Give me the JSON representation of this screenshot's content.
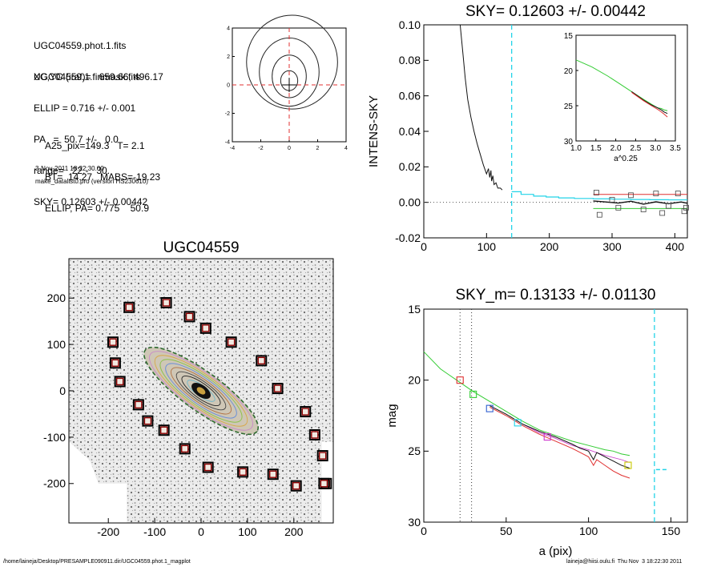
{
  "info": {
    "header_lines": [
      "UGC04559.phot.1.fits",
      "UGC04559.1.finmask.fits"
    ],
    "params_lines": [
      "XC,YC (iraf)=   659.66, 496.17",
      "ELLIP = 0.716 +/- 0.001",
      "PA   =  50.7 +/-   0.0",
      "range=   22.-   30.",
      "SKY= 0.12603 +/- 0.00442"
    ],
    "results_lines": [
      "A25_pix=149.3   T= 2.1",
      "BT=  14.27   MABS=-19.23",
      "ELLIP, PA= 0.775    50.9"
    ],
    "date": "3-Nov-2011 18:22:30.00",
    "program": "make_datalist0.pro (version HS230610)"
  },
  "footer": {
    "left": "/home/laineja/Desktop/PRESAMPLE090911.dir/UGC04559.phot.1_magplot",
    "right": "laineja@hiisi.oulu.fi  Thu Nov  3 18:22:30 2011"
  },
  "colors": {
    "cyan": "#22d3e8",
    "red": "#e03030",
    "green": "#33cc33",
    "frame_box": "#8b0000"
  },
  "chart_data": [
    {
      "id": "contour",
      "type": "contour",
      "xlim": [
        -4,
        4
      ],
      "ylim": [
        -4,
        4
      ],
      "xticks": [
        "-4",
        "-2",
        "0",
        "2",
        "4"
      ],
      "yticks": [
        "-4",
        "-2",
        "0",
        "2",
        "4"
      ],
      "contours": [
        {
          "center": [
            0.0,
            0.3
          ],
          "rx": 0.6,
          "ry": 0.7
        },
        {
          "center": [
            0.0,
            0.6
          ],
          "rx": 1.2,
          "ry": 1.5
        },
        {
          "center": [
            0.0,
            0.9
          ],
          "rx": 2.1,
          "ry": 2.4
        },
        {
          "center": [
            0.2,
            1.6
          ],
          "rx": 3.2,
          "ry": 3.3
        }
      ]
    },
    {
      "id": "sky_profile",
      "type": "line",
      "title": "SKY= 0.12603 +/- 0.00442",
      "ylabel": "INTENS-SKY",
      "xlim": [
        0,
        420
      ],
      "ylim": [
        -0.02,
        0.1
      ],
      "xticks": [
        "0",
        "100",
        "200",
        "300",
        "400"
      ],
      "yticks": [
        "-0.02",
        "0.00",
        "0.02",
        "0.04",
        "0.06",
        "0.08",
        "0.10"
      ],
      "vline_x": 140,
      "black_curve": {
        "x": [
          58,
          62,
          66,
          70,
          75,
          80,
          85,
          90,
          95,
          100,
          103,
          105,
          107,
          108,
          110,
          112,
          115,
          118,
          122,
          125
        ],
        "y": [
          0.1,
          0.085,
          0.07,
          0.058,
          0.048,
          0.04,
          0.033,
          0.027,
          0.021,
          0.016,
          0.019,
          0.014,
          0.018,
          0.012,
          0.015,
          0.01,
          0.011,
          0.008,
          0.008,
          0.007
        ]
      },
      "cyan_steps": {
        "x": [
          140,
          155,
          175,
          195,
          215,
          240,
          270,
          300,
          330,
          360,
          390,
          420
        ],
        "y": [
          0.006,
          0.0045,
          0.0035,
          0.003,
          0.0025,
          0.0022,
          0.002,
          0.0018,
          0.0016,
          0.0015,
          0.0014,
          0.0012
        ]
      },
      "red_line": {
        "x": [
          270,
          420
        ],
        "y": [
          0.0045,
          0.0045
        ]
      },
      "green_line": {
        "x": [
          270,
          420
        ],
        "y": [
          -0.0035,
          -0.0035
        ]
      },
      "black_tail": {
        "x": [
          270,
          290,
          310,
          330,
          350,
          370,
          390,
          410,
          420
        ],
        "y": [
          0.0008,
          0.0002,
          -0.0004,
          0.0006,
          -0.001,
          0.0003,
          -0.0008,
          0.0002,
          -0.0005
        ]
      },
      "squares": {
        "x": [
          275,
          280,
          300,
          310,
          330,
          350,
          370,
          380,
          390,
          405,
          415,
          418
        ],
        "y": [
          0.0055,
          -0.007,
          0.0015,
          -0.003,
          0.004,
          -0.004,
          0.005,
          -0.006,
          -0.002,
          0.005,
          -0.005,
          -0.003
        ]
      },
      "inset": {
        "xlabel": "a^0.25",
        "xlim": [
          1.0,
          3.5
        ],
        "ylim": [
          15,
          30
        ],
        "xticks": [
          "1.0",
          "1.5",
          "2.0",
          "2.5",
          "3.0",
          "3.5"
        ],
        "yticks": [
          "15",
          "20",
          "25",
          "30"
        ],
        "green": {
          "x": [
            1.0,
            1.4,
            1.8,
            2.1,
            2.4,
            2.7,
            2.9,
            3.05,
            3.15,
            3.22,
            3.3
          ],
          "y": [
            18.5,
            19.5,
            20.8,
            21.9,
            23.0,
            24.1,
            24.8,
            25.3,
            25.4,
            25.6,
            25.7
          ]
        },
        "red": {
          "x": [
            2.4,
            2.7,
            2.9,
            3.05,
            3.15,
            3.22,
            3.3
          ],
          "y": [
            23.1,
            24.3,
            25.0,
            25.5,
            25.9,
            26.2,
            26.6
          ]
        },
        "black": {
          "x": [
            2.4,
            2.7,
            2.9,
            3.05,
            3.15,
            3.22,
            3.3
          ],
          "y": [
            23.0,
            24.2,
            24.9,
            25.3,
            25.6,
            25.9,
            26.1
          ]
        }
      }
    },
    {
      "id": "galaxy_map",
      "type": "image_map",
      "title": "UGC04559",
      "xlim": [
        -285,
        285
      ],
      "ylim": [
        -285,
        285
      ],
      "xticks": [
        "-200",
        "-100",
        "0",
        "100",
        "200"
      ],
      "yticks": [
        "-200",
        "-100",
        "0",
        "100",
        "200"
      ],
      "ellipse": {
        "center": [
          0,
          0
        ],
        "semi_major": 149,
        "ellipticity": 0.72,
        "pa_deg": 51
      },
      "sky_boxes": {
        "x": [
          -155,
          -75,
          -25,
          10,
          -190,
          -185,
          -175,
          -135,
          -115,
          -80,
          -35,
          15,
          65,
          130,
          165,
          225,
          245,
          262,
          270,
          90,
          155,
          205,
          265
        ],
        "y": [
          180,
          190,
          160,
          135,
          105,
          60,
          20,
          -30,
          -65,
          -85,
          -125,
          -165,
          105,
          65,
          5,
          -45,
          -95,
          -140,
          -200,
          -175,
          -180,
          -205,
          -200
        ]
      }
    },
    {
      "id": "mag_profile",
      "type": "line",
      "title": "SKY_m=  0.13133 +/- 0.01130",
      "xlabel": "a (pix)",
      "ylabel": "mag",
      "xlim": [
        0,
        160
      ],
      "ylim": [
        30,
        15
      ],
      "xticks": [
        "0",
        "50",
        "100",
        "150"
      ],
      "yticks": [
        "15",
        "20",
        "25",
        "30"
      ],
      "vlines_dotted": [
        22,
        29
      ],
      "vline_cyan": 140,
      "cyan_marker": {
        "x": [
          141,
          148
        ],
        "y": [
          26.3,
          26.3
        ]
      },
      "green": {
        "x": [
          0,
          5,
          10,
          15,
          20,
          25,
          30,
          40,
          50,
          60,
          70,
          80,
          90,
          100,
          110,
          115,
          120,
          125
        ],
        "y": [
          18.0,
          18.6,
          19.2,
          19.6,
          20.0,
          20.4,
          20.8,
          21.5,
          22.2,
          22.9,
          23.5,
          23.9,
          24.3,
          24.6,
          24.9,
          25.0,
          25.2,
          25.3
        ]
      },
      "black": {
        "x": [
          40,
          50,
          60,
          70,
          80,
          90,
          95,
          100,
          103,
          105,
          110,
          115,
          120,
          125
        ],
        "y": [
          21.8,
          22.4,
          23.1,
          23.6,
          24.0,
          24.5,
          24.8,
          25.0,
          25.6,
          25.1,
          25.4,
          25.7,
          26.0,
          26.2
        ]
      },
      "red": {
        "x": [
          40,
          50,
          60,
          70,
          80,
          90,
          95,
          100,
          103,
          105,
          110,
          115,
          120,
          125
        ],
        "y": [
          21.9,
          22.5,
          23.2,
          23.8,
          24.3,
          24.8,
          25.1,
          25.4,
          26.0,
          25.6,
          26.0,
          26.4,
          26.7,
          26.9
        ]
      },
      "magenta": {
        "x": [
          60,
          70,
          80,
          90,
          100,
          110,
          120,
          125
        ],
        "y": [
          23.1,
          23.7,
          24.1,
          24.6,
          24.9,
          25.3,
          25.6,
          25.8
        ]
      },
      "squares": [
        {
          "x": 22,
          "y": 20.0,
          "color": "#e03030"
        },
        {
          "x": 30,
          "y": 21.0,
          "color": "#33cc33"
        },
        {
          "x": 40,
          "y": 22.0,
          "color": "#3060d0"
        },
        {
          "x": 57,
          "y": 23.0,
          "color": "#22d3e8"
        },
        {
          "x": 75,
          "y": 24.0,
          "color": "#cc33cc"
        },
        {
          "x": 124,
          "y": 26.0,
          "color": "#c8c800"
        }
      ]
    }
  ]
}
